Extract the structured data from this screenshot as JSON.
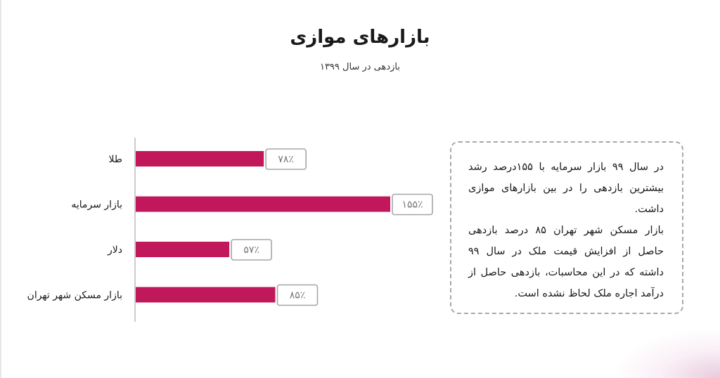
{
  "page": {
    "title": "بازارهای موازی",
    "subtitle": "بازدهی در سال ۱۳۹۹"
  },
  "colors": {
    "bar": "#c1185b",
    "axis": "#999999",
    "label_border": "#a6a6a6",
    "label_text": "#777777"
  },
  "chart_data": {
    "type": "bar",
    "orientation": "horizontal",
    "title": "بازارهای موازی",
    "subtitle": "بازدهی در سال ۱۳۹۹",
    "categories": [
      "طلا",
      "بازار سرمایه",
      "دلار",
      "بازار مسکن شهر تهران"
    ],
    "values": [
      78,
      155,
      57,
      85
    ],
    "value_labels": [
      "۷۸٪",
      "۱۵۵٪",
      "۵۷٪",
      "۸۵٪"
    ],
    "unit": "%",
    "xlim": [
      0,
      170
    ],
    "grid": false,
    "legend": "none"
  },
  "note": {
    "paragraph_1": "در سال ۹۹ بازار سرمایه با ۱۵۵درصد رشد بیشترین بازدهی را در بین بازارهای موازی داشت.",
    "paragraph_2": "بازار مسکن شهر تهران ۸۵ درصد بازدهی حاصل از افزایش قیمت ملک در سال ۹۹ داشته که در این محاسبات، بازدهی حاصل از درآمد اجاره ملک لحاظ نشده است."
  }
}
